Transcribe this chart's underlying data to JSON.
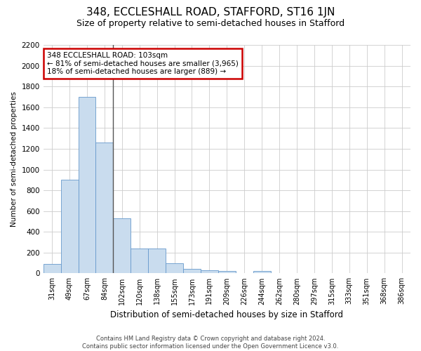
{
  "title": "348, ECCLESHALL ROAD, STAFFORD, ST16 1JN",
  "subtitle": "Size of property relative to semi-detached houses in Stafford",
  "xlabel": "Distribution of semi-detached houses by size in Stafford",
  "ylabel": "Number of semi-detached properties",
  "footer_line1": "Contains HM Land Registry data © Crown copyright and database right 2024.",
  "footer_line2": "Contains public sector information licensed under the Open Government Licence v3.0.",
  "categories": [
    "31sqm",
    "49sqm",
    "67sqm",
    "84sqm",
    "102sqm",
    "120sqm",
    "138sqm",
    "155sqm",
    "173sqm",
    "191sqm",
    "209sqm",
    "226sqm",
    "244sqm",
    "262sqm",
    "280sqm",
    "297sqm",
    "315sqm",
    "333sqm",
    "351sqm",
    "368sqm",
    "386sqm"
  ],
  "values": [
    90,
    900,
    1700,
    1260,
    530,
    240,
    240,
    100,
    45,
    30,
    20,
    0,
    20,
    0,
    0,
    0,
    0,
    0,
    0,
    0,
    0
  ],
  "bar_color": "#c9dcee",
  "bar_edge_color": "#6699cc",
  "property_line_index": 4,
  "property_line_color": "#555555",
  "annotation_text_line1": "348 ECCLESHALL ROAD: 103sqm",
  "annotation_text_line2": "← 81% of semi-detached houses are smaller (3,965)",
  "annotation_text_line3": "18% of semi-detached houses are larger (889) →",
  "annotation_box_color": "#cc0000",
  "ylim": [
    0,
    2200
  ],
  "yticks": [
    0,
    200,
    400,
    600,
    800,
    1000,
    1200,
    1400,
    1600,
    1800,
    2000,
    2200
  ],
  "grid_color": "#cccccc",
  "bg_color": "#ffffff",
  "title_fontsize": 11,
  "subtitle_fontsize": 9
}
